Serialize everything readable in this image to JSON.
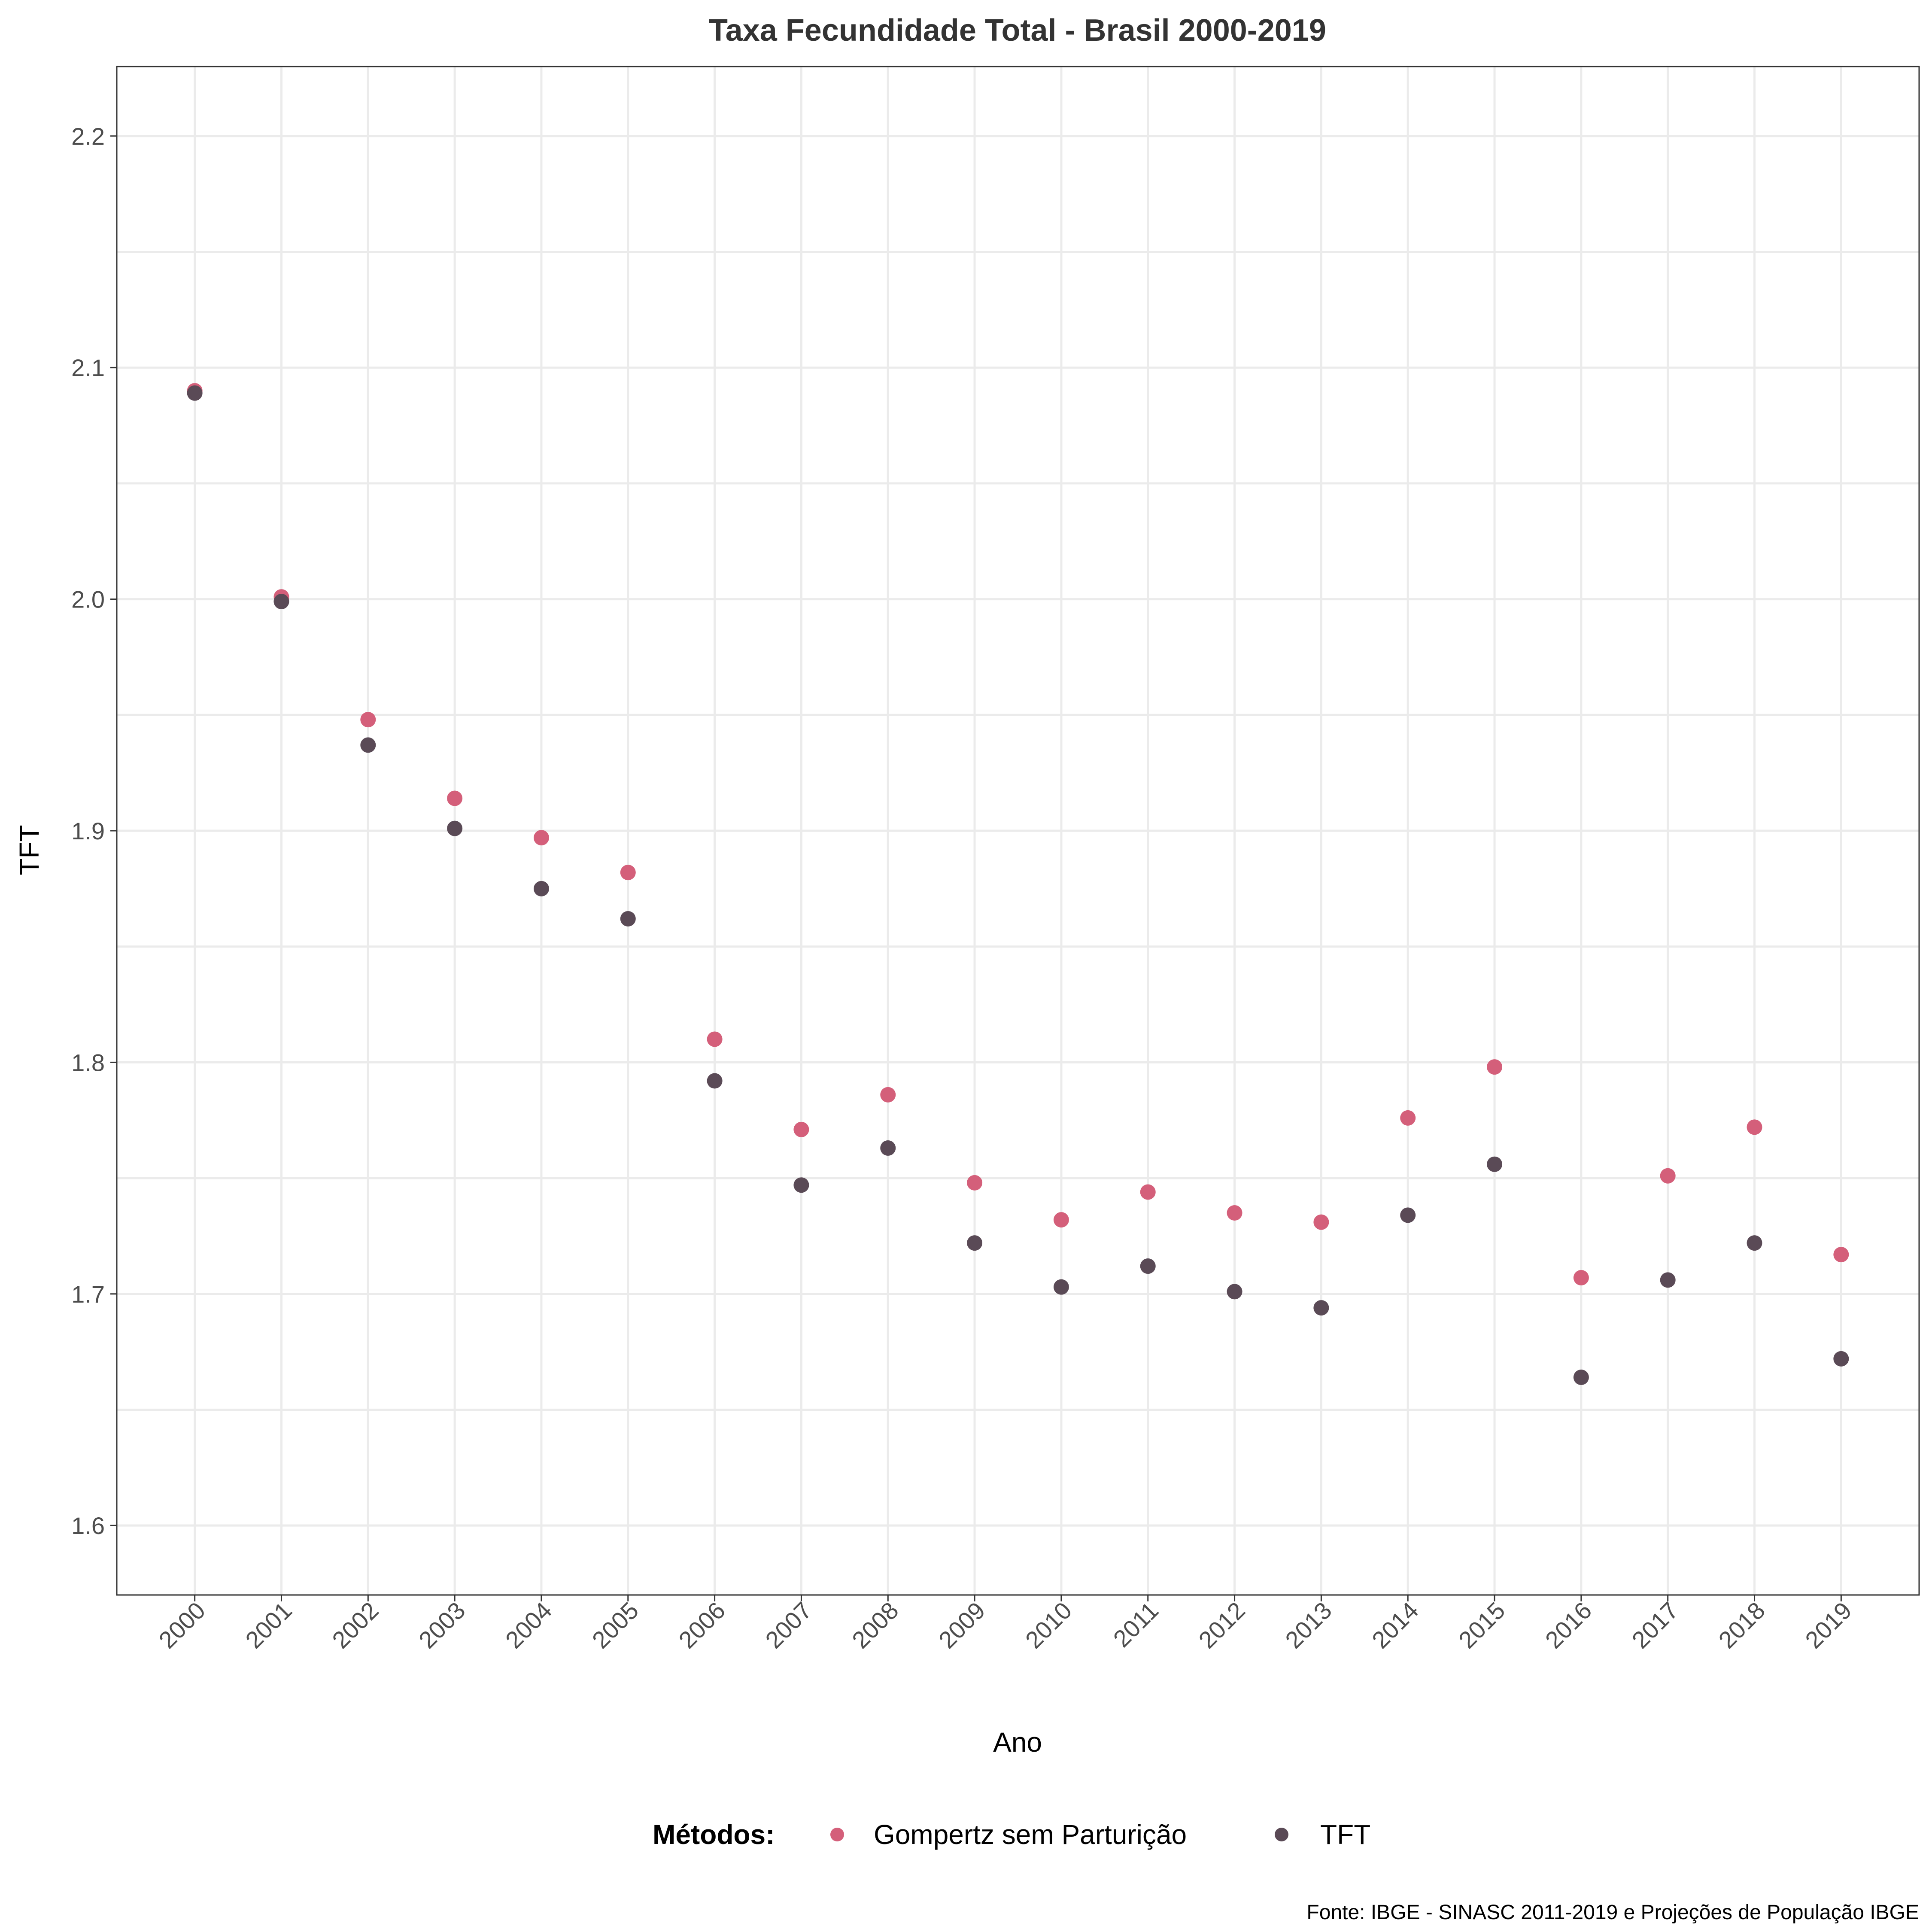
{
  "chart_data": {
    "type": "scatter",
    "title": "Taxa Fecundidade Total - Brasil 2000-2019",
    "xlabel": "Ano",
    "ylabel": "TFT",
    "x": [
      2000,
      2001,
      2002,
      2003,
      2004,
      2005,
      2006,
      2007,
      2008,
      2009,
      2010,
      2011,
      2012,
      2013,
      2014,
      2015,
      2016,
      2017,
      2018,
      2019
    ],
    "x_tick_labels": [
      "2000",
      "2001",
      "2002",
      "2003",
      "2004",
      "2005",
      "2006",
      "2007",
      "2008",
      "2009",
      "2010",
      "2011",
      "2012",
      "2013",
      "2014",
      "2015",
      "2016",
      "2017",
      "2018",
      "2019"
    ],
    "y_tick_labels": [
      "1.6",
      "1.7",
      "1.8",
      "1.9",
      "2.0",
      "2.1",
      "2.2"
    ],
    "y_ticks": [
      1.6,
      1.7,
      1.8,
      1.9,
      2.0,
      2.1,
      2.2
    ],
    "ylim": [
      1.57,
      2.23
    ],
    "xlim": [
      1999.1,
      2019.9
    ],
    "grid": true,
    "legend_position": "bottom",
    "legend_title": "Métodos:",
    "caption": "Fonte: IBGE - SINASC 2011-2019 e Projeções de População IBGE",
    "series": [
      {
        "name": "Gompertz sem Parturição",
        "color": "#d45f7a",
        "values": [
          2.09,
          2.001,
          1.948,
          1.914,
          1.897,
          1.882,
          1.81,
          1.771,
          1.786,
          1.748,
          1.732,
          1.744,
          1.735,
          1.731,
          1.776,
          1.798,
          1.707,
          1.751,
          1.772,
          1.717
        ]
      },
      {
        "name": "TFT",
        "color": "#5a4a56",
        "values": [
          2.089,
          1.999,
          1.937,
          1.901,
          1.875,
          1.862,
          1.792,
          1.747,
          1.763,
          1.722,
          1.703,
          1.712,
          1.701,
          1.694,
          1.734,
          1.756,
          1.664,
          1.706,
          1.722,
          1.672
        ]
      }
    ]
  }
}
